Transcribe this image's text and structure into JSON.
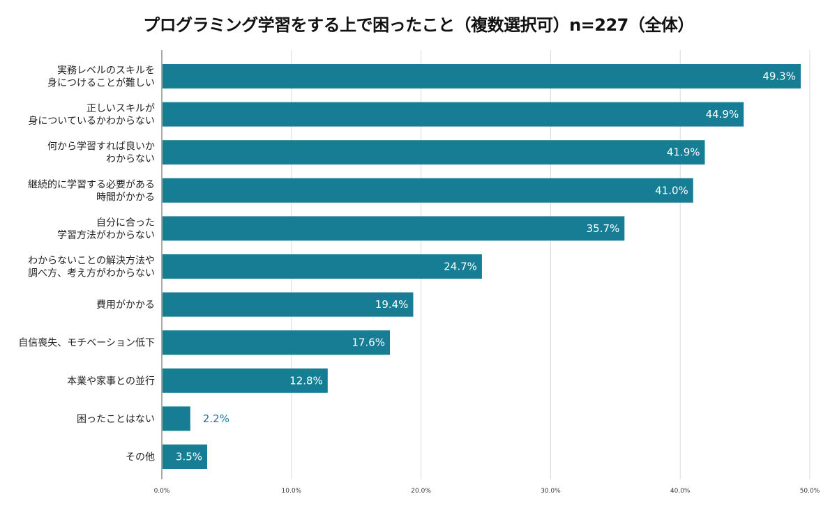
{
  "chart_data": {
    "type": "bar",
    "orientation": "horizontal",
    "title": "プログラミング学習をする上で困ったこと（複数選択可）n=227（全体）",
    "categories": [
      [
        "実務レベルのスキルを",
        "身につけることが難しい"
      ],
      [
        "正しいスキルが",
        "身についているかわからない"
      ],
      [
        "何から学習すれば良いか",
        "わからない"
      ],
      [
        "継続的に学習する必要がある",
        "時間がかかる"
      ],
      [
        "自分に合った",
        "学習方法がわからない"
      ],
      [
        "わからないことの解決方法や",
        "調べ方、考え方がわからない"
      ],
      [
        "費用がかかる"
      ],
      [
        "自信喪失、モチベーション低下"
      ],
      [
        "本業や家事との並行"
      ],
      [
        "困ったことはない"
      ],
      [
        "その他"
      ]
    ],
    "values": [
      49.3,
      44.9,
      41.9,
      41.0,
      35.7,
      24.7,
      19.4,
      17.6,
      12.8,
      2.2,
      3.5
    ],
    "value_labels": [
      "49.3%",
      "44.9%",
      "41.9%",
      "41.0%",
      "35.7%",
      "24.7%",
      "19.4%",
      "17.6%",
      "12.8%",
      "2.2%",
      "3.5%"
    ],
    "xlim": [
      0,
      50
    ],
    "x_ticks": [
      "0.0%",
      "10.0%",
      "20.0%",
      "30.0%",
      "40.0%",
      "50.0%"
    ],
    "grid": true,
    "bar_color": "#167d95",
    "label_inside_color": "#ffffff",
    "label_outside_color": "#167d95",
    "grid_color": "#d9d9d9"
  }
}
